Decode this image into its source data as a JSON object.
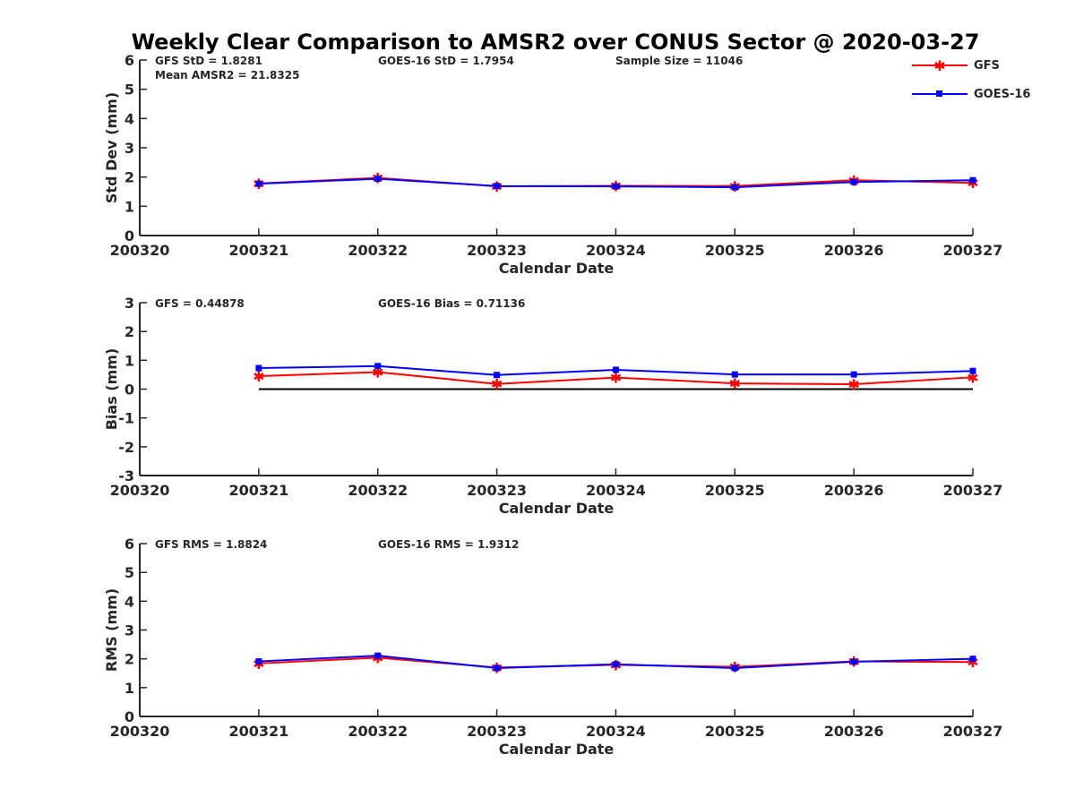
{
  "figure_title": "Weekly Clear Comparison to AMSR2 over CONUS Sector @ 2020-03-27",
  "legend": {
    "placement": "top-right",
    "entries": [
      {
        "label": "GFS",
        "color": "#ff0000",
        "marker": "asterisk"
      },
      {
        "label": "GOES-16",
        "color": "#0000ff",
        "marker": "square"
      }
    ]
  },
  "colors": {
    "gfs": "#ff0000",
    "goes16": "#0000ff",
    "zero_line": "#000000",
    "axis": "#262626"
  },
  "chart_data": [
    {
      "type": "line",
      "title": "",
      "xlabel": "Calendar Date",
      "ylabel": "Std Dev (mm)",
      "categories": [
        "200320",
        "200321",
        "200322",
        "200323",
        "200324",
        "200325",
        "200326",
        "200327"
      ],
      "yticks": [
        "0",
        "1",
        "2",
        "3",
        "4",
        "5",
        "6"
      ],
      "ylim": [
        0,
        6
      ],
      "grid": false,
      "annotations": [
        {
          "text": "GFS StD = 1.8281",
          "row": 0,
          "col": 0
        },
        {
          "text": "GOES-16 StD = 1.7954",
          "row": 0,
          "col": 1
        },
        {
          "text": "Sample Size = 11046",
          "row": 0,
          "col": 2
        },
        {
          "text": "Mean AMSR2 = 21.8325",
          "row": 1,
          "col": 0
        }
      ],
      "series": [
        {
          "name": "GFS",
          "values": [
            null,
            1.78,
            1.97,
            1.68,
            1.7,
            1.69,
            1.89,
            1.8
          ]
        },
        {
          "name": "GOES-16",
          "values": [
            null,
            1.77,
            1.94,
            1.69,
            1.68,
            1.65,
            1.83,
            1.89
          ]
        }
      ]
    },
    {
      "type": "line",
      "title": "",
      "xlabel": "Calendar Date",
      "ylabel": "Bias (mm)",
      "categories": [
        "200320",
        "200321",
        "200322",
        "200323",
        "200324",
        "200325",
        "200326",
        "200327"
      ],
      "yticks": [
        "-3",
        "-2",
        "-1",
        "0",
        "1",
        "2",
        "3"
      ],
      "ylim": [
        -3,
        3
      ],
      "grid": false,
      "zero_line": true,
      "annotations": [
        {
          "text": "GFS = 0.44878",
          "row": 0,
          "col": 0
        },
        {
          "text": "GOES-16 Bias  = 0.71136",
          "row": 0,
          "col": 1
        }
      ],
      "series": [
        {
          "name": "GFS",
          "values": [
            null,
            0.45,
            0.59,
            0.18,
            0.4,
            0.2,
            0.17,
            0.41
          ]
        },
        {
          "name": "GOES-16",
          "values": [
            null,
            0.73,
            0.8,
            0.49,
            0.67,
            0.51,
            0.51,
            0.63
          ]
        }
      ]
    },
    {
      "type": "line",
      "title": "",
      "xlabel": "Calendar Date",
      "ylabel": "RMS (mm)",
      "categories": [
        "200320",
        "200321",
        "200322",
        "200323",
        "200324",
        "200325",
        "200326",
        "200327"
      ],
      "yticks": [
        "0",
        "1",
        "2",
        "3",
        "4",
        "5",
        "6"
      ],
      "ylim": [
        0,
        6
      ],
      "grid": false,
      "annotations": [
        {
          "text": "GFS RMS = 1.8824",
          "row": 0,
          "col": 0
        },
        {
          "text": "GOES-16 RMS = 1.9312",
          "row": 0,
          "col": 1
        }
      ],
      "series": [
        {
          "name": "GFS",
          "values": [
            null,
            1.84,
            2.04,
            1.7,
            1.79,
            1.72,
            1.91,
            1.89
          ]
        },
        {
          "name": "GOES-16",
          "values": [
            null,
            1.91,
            2.11,
            1.68,
            1.81,
            1.68,
            1.9,
            2.0
          ]
        }
      ]
    }
  ]
}
